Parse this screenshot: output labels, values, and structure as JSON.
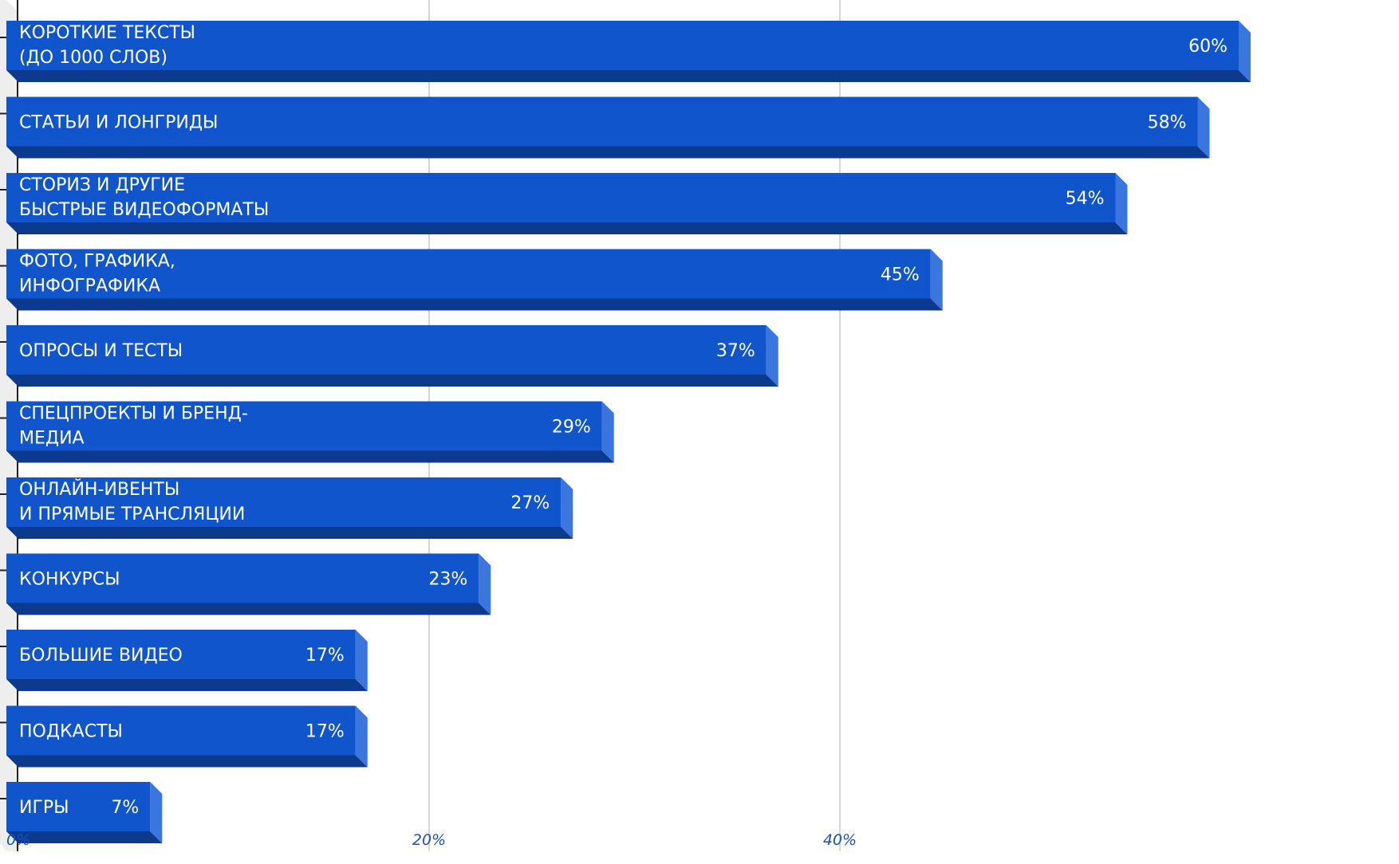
{
  "chart_data": {
    "type": "bar",
    "orientation": "horizontal",
    "style": "3d",
    "categories": [
      [
        "КОРОТКИЕ ТЕКСТЫ",
        "(ДО 1000 СЛОВ)"
      ],
      [
        "СТАТЬИ И ЛОНГРИДЫ"
      ],
      [
        "СТОРИЗ И ДРУГИЕ",
        "БЫСТРЫЕ ВИДЕОФОРМАТЫ"
      ],
      [
        "ФОТО, ГРАФИКА,",
        "ИНФОГРАФИКА"
      ],
      [
        "ОПРОСЫ И ТЕСТЫ"
      ],
      [
        "СПЕЦПРОЕКТЫ И БРЕНД-",
        "МЕДИА"
      ],
      [
        "ОНЛАЙН-ИВЕНТЫ",
        "И ПРЯМЫЕ ТРАНСЛЯЦИИ"
      ],
      [
        "КОНКУРСЫ"
      ],
      [
        "БОЛЬШИЕ ВИДЕО"
      ],
      [
        "ПОДКАСТЫ"
      ],
      [
        "ИГРЫ"
      ]
    ],
    "values": [
      60,
      58,
      54,
      45,
      37,
      29,
      27,
      23,
      17,
      17,
      7
    ],
    "value_labels": [
      "60%",
      "58%",
      "54%",
      "45%",
      "37%",
      "29%",
      "27%",
      "23%",
      "17%",
      "17%",
      "7%"
    ],
    "x_ticks": [
      0,
      20,
      40
    ],
    "x_tick_labels": [
      "0%",
      "20%",
      "40%"
    ],
    "xlim": [
      0,
      60
    ],
    "grid": true,
    "colors": {
      "bar_face": "#1155cc",
      "bar_bottom": "#0b3a8f",
      "bar_side": "#3b76df",
      "grid": "#c8c8c8",
      "axis": "#222222",
      "tick_label": "#1a4fc0"
    }
  }
}
